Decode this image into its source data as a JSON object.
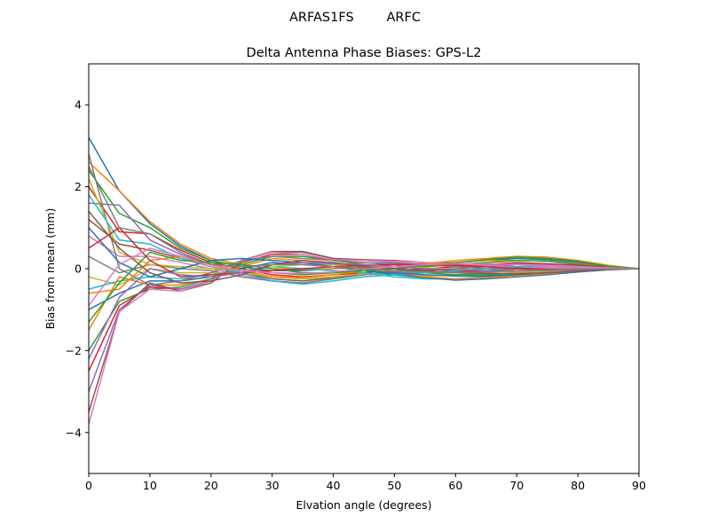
{
  "chart_data": {
    "type": "line",
    "suptitle": "ARFAS1FS        ARFC",
    "title": "Delta Antenna Phase Biases: GPS-L2",
    "xlabel": "Elvation angle (degrees)",
    "ylabel": "Bias from mean (mm)",
    "xlim": [
      0,
      90
    ],
    "ylim": [
      -5,
      5
    ],
    "xticks": [
      0,
      10,
      20,
      30,
      40,
      50,
      60,
      70,
      80,
      90
    ],
    "xtick_labels": [
      "0",
      "10",
      "20",
      "30",
      "40",
      "50",
      "60",
      "70",
      "80",
      "90"
    ],
    "yticks": [
      -4,
      -2,
      0,
      2,
      4
    ],
    "ytick_labels": [
      "−4",
      "−2",
      "0",
      "2",
      "4"
    ],
    "grid": false,
    "legend": "none",
    "colors": [
      "#1f77b4",
      "#ff7f0e",
      "#2ca02c",
      "#d62728",
      "#9467bd",
      "#8c564b",
      "#e377c2",
      "#7f7f7f",
      "#bcbd22",
      "#17becf"
    ],
    "x": [
      0,
      5,
      10,
      15,
      20,
      25,
      30,
      35,
      40,
      45,
      50,
      55,
      60,
      65,
      70,
      75,
      80,
      85,
      90
    ],
    "series": [
      {
        "values": [
          3.2,
          1.9,
          1.1,
          0.55,
          0.2,
          0.05,
          -0.05,
          -0.05,
          0.0,
          0.05,
          0.1,
          0.12,
          0.15,
          0.2,
          0.25,
          0.22,
          0.15,
          0.05,
          0.0
        ]
      },
      {
        "values": [
          2.6,
          1.9,
          1.15,
          0.6,
          0.25,
          0.1,
          0.0,
          -0.02,
          0.0,
          0.02,
          0.05,
          0.1,
          0.15,
          0.2,
          0.2,
          0.18,
          0.12,
          0.05,
          0.0
        ]
      },
      {
        "values": [
          2.4,
          1.35,
          1.0,
          0.5,
          0.2,
          0.05,
          -0.1,
          -0.15,
          -0.1,
          -0.05,
          0.0,
          0.05,
          0.1,
          0.15,
          0.2,
          0.18,
          0.1,
          0.05,
          0.0
        ]
      },
      {
        "values": [
          2.0,
          0.9,
          0.85,
          0.45,
          0.15,
          0.0,
          -0.15,
          -0.2,
          -0.15,
          -0.1,
          -0.05,
          0.0,
          0.05,
          0.1,
          0.15,
          0.12,
          0.08,
          0.03,
          0.0
        ]
      },
      {
        "values": [
          1.6,
          1.55,
          0.7,
          0.35,
          0.1,
          -0.05,
          -0.2,
          -0.25,
          -0.2,
          -0.15,
          -0.08,
          -0.03,
          0.02,
          0.08,
          0.12,
          0.1,
          0.06,
          0.02,
          0.0
        ]
      },
      {
        "values": [
          1.2,
          0.6,
          0.45,
          0.25,
          0.05,
          -0.1,
          -0.25,
          -0.3,
          -0.22,
          -0.15,
          -0.1,
          -0.05,
          0.0,
          0.05,
          0.1,
          0.1,
          0.05,
          0.02,
          0.0
        ]
      },
      {
        "values": [
          0.8,
          0.3,
          0.3,
          0.15,
          0.0,
          -0.15,
          -0.3,
          -0.35,
          -0.25,
          -0.15,
          -0.1,
          -0.08,
          -0.05,
          0.0,
          0.05,
          0.05,
          0.03,
          0.01,
          0.0
        ]
      },
      {
        "values": [
          0.3,
          -0.1,
          0.1,
          0.0,
          -0.05,
          -0.2,
          -0.3,
          -0.35,
          -0.25,
          -0.15,
          -0.12,
          -0.1,
          -0.08,
          -0.05,
          0.0,
          0.02,
          0.01,
          0.0,
          0.0
        ]
      },
      {
        "values": [
          -0.2,
          -0.4,
          0.0,
          -0.1,
          -0.1,
          -0.1,
          -0.2,
          -0.25,
          -0.2,
          -0.12,
          -0.15,
          -0.18,
          -0.15,
          -0.1,
          -0.05,
          -0.03,
          -0.02,
          -0.01,
          0.0
        ]
      },
      {
        "values": [
          -0.5,
          -0.3,
          -0.2,
          -0.25,
          -0.15,
          -0.05,
          0.05,
          0.0,
          -0.05,
          -0.1,
          -0.2,
          -0.25,
          -0.25,
          -0.2,
          -0.15,
          -0.1,
          -0.05,
          -0.02,
          0.0
        ]
      },
      {
        "values": [
          -1.0,
          -0.6,
          -0.3,
          -0.3,
          -0.2,
          0.0,
          0.15,
          0.1,
          0.05,
          -0.05,
          -0.15,
          -0.22,
          -0.28,
          -0.25,
          -0.2,
          -0.15,
          -0.08,
          -0.03,
          0.0
        ]
      },
      {
        "values": [
          -1.5,
          -0.2,
          -0.4,
          -0.4,
          -0.25,
          0.05,
          0.25,
          0.2,
          0.1,
          0.0,
          -0.1,
          -0.2,
          -0.25,
          -0.22,
          -0.18,
          -0.12,
          -0.06,
          -0.02,
          0.0
        ]
      },
      {
        "values": [
          -2.0,
          -0.8,
          -0.5,
          -0.45,
          -0.25,
          0.1,
          0.3,
          0.3,
          0.2,
          0.1,
          0.0,
          -0.1,
          -0.15,
          -0.15,
          -0.12,
          -0.08,
          -0.04,
          -0.01,
          0.0
        ]
      },
      {
        "values": [
          -2.5,
          -0.9,
          -0.45,
          -0.5,
          -0.3,
          0.15,
          0.35,
          0.35,
          0.2,
          0.15,
          0.1,
          0.0,
          -0.05,
          -0.08,
          -0.06,
          -0.05,
          -0.03,
          -0.01,
          0.0
        ]
      },
      {
        "values": [
          -3.0,
          -1.0,
          -0.4,
          -0.5,
          -0.3,
          0.2,
          0.4,
          0.4,
          0.25,
          0.2,
          0.15,
          0.1,
          0.05,
          0.0,
          0.0,
          -0.02,
          -0.02,
          -0.01,
          0.0
        ]
      },
      {
        "values": [
          -3.5,
          -1.05,
          -0.35,
          -0.55,
          -0.35,
          0.2,
          0.42,
          0.42,
          0.25,
          0.22,
          0.2,
          0.15,
          0.1,
          0.05,
          0.02,
          0.0,
          -0.02,
          -0.01,
          0.0
        ]
      },
      {
        "values": [
          -3.8,
          -1.05,
          -0.5,
          -0.55,
          -0.3,
          0.2,
          0.4,
          0.35,
          0.22,
          0.2,
          0.18,
          0.15,
          0.12,
          0.08,
          0.05,
          0.02,
          0.0,
          0.0,
          0.0
        ]
      },
      {
        "values": [
          2.8,
          0.0,
          -0.4,
          -0.3,
          -0.1,
          0.2,
          0.3,
          0.25,
          0.2,
          0.15,
          0.12,
          0.1,
          0.05,
          0.0,
          -0.05,
          -0.05,
          -0.03,
          -0.01,
          0.0
        ]
      },
      {
        "values": [
          2.2,
          0.4,
          0.1,
          0.05,
          0.0,
          -0.05,
          0.05,
          0.1,
          0.1,
          0.08,
          0.05,
          0.02,
          0.0,
          -0.05,
          -0.1,
          -0.08,
          -0.05,
          -0.02,
          0.0
        ]
      },
      {
        "values": [
          1.8,
          0.7,
          0.6,
          0.25,
          0.05,
          -0.1,
          -0.3,
          -0.38,
          -0.3,
          -0.2,
          -0.15,
          -0.1,
          -0.05,
          0.0,
          0.05,
          0.08,
          0.05,
          0.02,
          0.0
        ]
      },
      {
        "values": [
          1.0,
          0.15,
          -0.2,
          0.0,
          0.2,
          0.25,
          0.2,
          0.15,
          0.05,
          -0.05,
          -0.1,
          -0.15,
          -0.18,
          -0.18,
          -0.15,
          -0.1,
          -0.06,
          -0.02,
          0.0
        ]
      },
      {
        "values": [
          -0.6,
          -0.5,
          0.2,
          0.3,
          0.1,
          -0.05,
          -0.2,
          -0.22,
          -0.15,
          -0.05,
          0.05,
          0.12,
          0.2,
          0.25,
          0.3,
          0.28,
          0.2,
          0.08,
          0.0
        ]
      },
      {
        "values": [
          -1.3,
          -0.35,
          0.4,
          0.2,
          0.15,
          0.1,
          0.0,
          -0.1,
          -0.1,
          -0.05,
          0.0,
          0.08,
          0.15,
          0.22,
          0.28,
          0.25,
          0.18,
          0.06,
          0.0
        ]
      },
      {
        "values": [
          0.5,
          1.0,
          0.2,
          -0.2,
          -0.15,
          -0.1,
          -0.05,
          0.0,
          0.05,
          0.08,
          0.1,
          0.1,
          0.08,
          0.05,
          0.0,
          -0.02,
          -0.02,
          -0.01,
          0.0
        ]
      },
      {
        "values": [
          -2.2,
          -0.7,
          0.0,
          -0.15,
          -0.2,
          -0.1,
          0.1,
          0.15,
          0.12,
          0.1,
          0.05,
          0.0,
          -0.02,
          -0.05,
          -0.05,
          -0.04,
          -0.03,
          -0.01,
          0.0
        ]
      },
      {
        "values": [
          1.4,
          0.5,
          -0.1,
          -0.35,
          -0.3,
          -0.15,
          0.1,
          0.2,
          0.15,
          0.05,
          0.0,
          -0.05,
          -0.1,
          -0.12,
          -0.12,
          -0.1,
          -0.06,
          -0.02,
          0.0
        ]
      },
      {
        "values": [
          -0.9,
          0.1,
          0.5,
          0.3,
          0.05,
          -0.05,
          -0.1,
          -0.12,
          -0.08,
          0.0,
          0.05,
          0.1,
          0.12,
          0.12,
          0.1,
          0.08,
          0.05,
          0.02,
          0.0
        ]
      },
      {
        "values": [
          2.5,
          1.0,
          0.85,
          0.4,
          0.1,
          0.05,
          0.1,
          0.1,
          0.05,
          0.0,
          -0.05,
          -0.08,
          -0.1,
          -0.08,
          -0.05,
          -0.03,
          -0.02,
          -0.01,
          0.0
        ]
      }
    ]
  }
}
